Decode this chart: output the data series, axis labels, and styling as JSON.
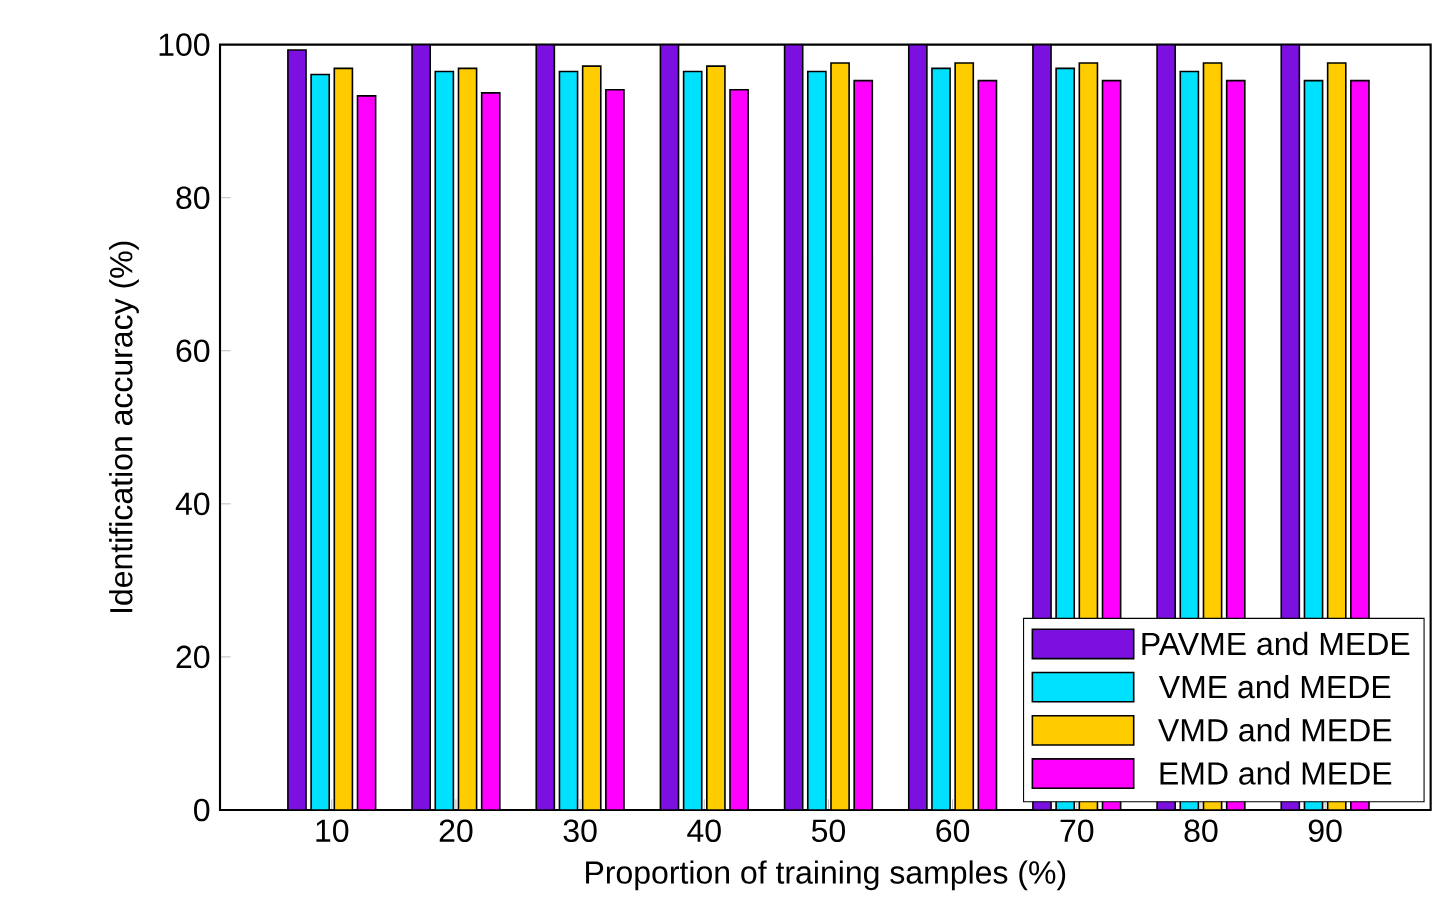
{
  "chart_data": {
    "type": "bar",
    "xlabel": "Proportion of training samples (%)",
    "ylabel": "Identification accuracy (%)",
    "categories": [
      "10",
      "20",
      "30",
      "40",
      "50",
      "60",
      "70",
      "80",
      "90"
    ],
    "series": [
      {
        "name": "PAVME and MEDE",
        "color": "#7b10e0",
        "values": [
          99.3,
          100,
          100,
          100,
          100,
          100,
          100,
          100,
          100
        ]
      },
      {
        "name": "VME and MEDE",
        "color": "#00e0ff",
        "values": [
          96.1,
          96.5,
          96.5,
          96.5,
          96.5,
          96.9,
          96.9,
          96.5,
          95.3
        ]
      },
      {
        "name": "VMD and MEDE",
        "color": "#ffcc00",
        "values": [
          96.9,
          96.9,
          97.2,
          97.2,
          97.6,
          97.6,
          97.6,
          97.6,
          97.6
        ]
      },
      {
        "name": "EMD and MEDE",
        "color": "#ff00ff",
        "values": [
          93.3,
          93.7,
          94.1,
          94.1,
          95.3,
          95.3,
          95.3,
          95.3,
          95.3
        ]
      }
    ],
    "ylim": [
      0,
      100
    ],
    "yticks": [
      0,
      20,
      40,
      60,
      80,
      100
    ],
    "legend": "bottom right",
    "grid": false
  }
}
